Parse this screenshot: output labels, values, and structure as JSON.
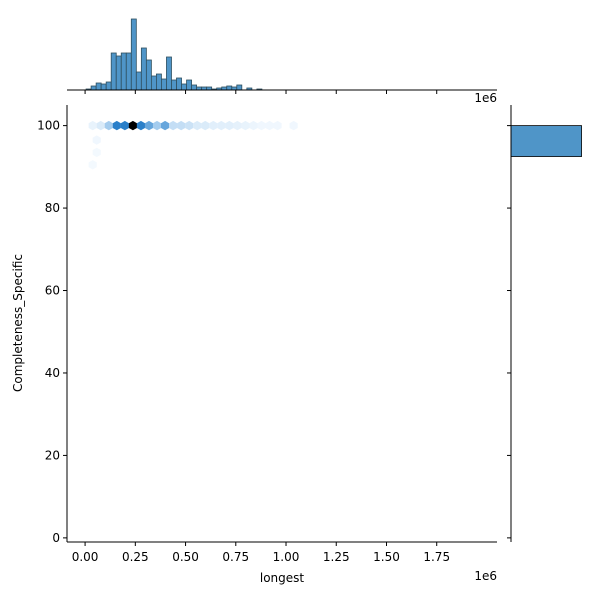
{
  "chart_data": {
    "type": "hexbin-jointplot",
    "xlabel": "longest",
    "ylabel": "Completeness_Specific",
    "x_offset_text": "1e6",
    "top_offset_text": "1e6",
    "x_multiplier": 1000000,
    "xlim": [
      -0.09,
      2.05
    ],
    "ylim": [
      -1,
      105
    ],
    "xticks": [
      0.0,
      0.25,
      0.5,
      0.75,
      1.0,
      1.25,
      1.5,
      1.75
    ],
    "xtick_labels": [
      "0.00",
      "0.25",
      "0.50",
      "0.75",
      "1.00",
      "1.25",
      "1.50",
      "1.75"
    ],
    "yticks": [
      0,
      20,
      40,
      60,
      80,
      100
    ],
    "ytick_labels": [
      "0",
      "20",
      "40",
      "60",
      "80",
      "100"
    ],
    "colors": {
      "bar": "#4f95c8",
      "bar_edge": "#2f4f5f",
      "hex_max": "#000000",
      "hex_mid": "#2a7fc9"
    },
    "hexbin": {
      "gridsize_x": 0.04,
      "cells": [
        {
          "x": 0.038,
          "y": 100,
          "count": 4
        },
        {
          "x": 0.078,
          "y": 100,
          "count": 8
        },
        {
          "x": 0.118,
          "y": 100,
          "count": 22
        },
        {
          "x": 0.158,
          "y": 100,
          "count": 42
        },
        {
          "x": 0.198,
          "y": 100,
          "count": 42
        },
        {
          "x": 0.238,
          "y": 100,
          "count": 70
        },
        {
          "x": 0.278,
          "y": 100,
          "count": 42
        },
        {
          "x": 0.318,
          "y": 100,
          "count": 32
        },
        {
          "x": 0.358,
          "y": 100,
          "count": 22
        },
        {
          "x": 0.398,
          "y": 100,
          "count": 32
        },
        {
          "x": 0.438,
          "y": 100,
          "count": 14
        },
        {
          "x": 0.478,
          "y": 100,
          "count": 14
        },
        {
          "x": 0.518,
          "y": 100,
          "count": 12
        },
        {
          "x": 0.558,
          "y": 100,
          "count": 8
        },
        {
          "x": 0.598,
          "y": 100,
          "count": 8
        },
        {
          "x": 0.638,
          "y": 100,
          "count": 6
        },
        {
          "x": 0.678,
          "y": 100,
          "count": 6
        },
        {
          "x": 0.718,
          "y": 100,
          "count": 6
        },
        {
          "x": 0.758,
          "y": 100,
          "count": 5
        },
        {
          "x": 0.798,
          "y": 100,
          "count": 4
        },
        {
          "x": 0.838,
          "y": 100,
          "count": 3
        },
        {
          "x": 0.878,
          "y": 100,
          "count": 2
        },
        {
          "x": 0.918,
          "y": 100,
          "count": 2
        },
        {
          "x": 0.958,
          "y": 100,
          "count": 2
        },
        {
          "x": 1.038,
          "y": 100,
          "count": 2
        },
        {
          "x": 0.058,
          "y": 96.5,
          "count": 2
        },
        {
          "x": 0.058,
          "y": 93.5,
          "count": 1
        },
        {
          "x": 0.038,
          "y": 90.5,
          "count": 1
        }
      ]
    },
    "x_marginal_hist": {
      "bin_width": 0.025,
      "bin_start": 0.005,
      "counts": [
        1,
        4,
        7,
        6,
        8,
        37,
        34,
        37,
        37,
        71,
        18,
        42,
        30,
        14,
        16,
        11,
        33,
        10,
        12,
        6,
        10,
        5,
        3,
        3,
        3,
        1,
        2,
        3,
        4,
        3,
        5,
        0,
        2,
        0,
        1
      ]
    },
    "y_marginal_hist": {
      "bins": [
        {
          "y0": 92.5,
          "y1": 100,
          "count": 100
        }
      ],
      "max": 112
    }
  }
}
